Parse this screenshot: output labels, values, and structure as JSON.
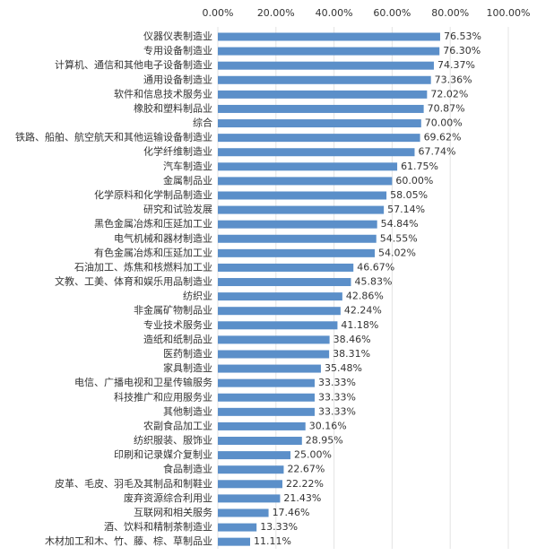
{
  "chart_data": {
    "type": "hbar",
    "color": "#5b8fc9",
    "grid": true,
    "xlim": [
      0,
      100
    ],
    "xticks": [
      {
        "value": 0,
        "label": "0.00%"
      },
      {
        "value": 20,
        "label": "20.00%"
      },
      {
        "value": 40,
        "label": "40.00%"
      },
      {
        "value": 60,
        "label": "60.00%"
      },
      {
        "value": 80,
        "label": "80.00%"
      },
      {
        "value": 100,
        "label": "100.00%"
      }
    ],
    "categories": [
      "仪器仪表制造业",
      "专用设备制造业",
      "计算机、通信和其他电子设备制造业",
      "通用设备制造业",
      "软件和信息技术服务业",
      "橡胶和塑料制品业",
      "综合",
      "铁路、船舶、航空航天和其他运输设备制造业",
      "化学纤维制造业",
      "汽车制造业",
      "金属制品业",
      "化学原料和化学制品制造业",
      "研究和试验发展",
      "黑色金属冶炼和压延加工业",
      "电气机械和器材制造业",
      "有色金属冶炼和压延加工业",
      "石油加工、炼焦和核燃料加工业",
      "文教、工美、体育和娱乐用品制造业",
      "纺织业",
      "非金属矿物制品业",
      "专业技术服务业",
      "造纸和纸制品业",
      "医药制造业",
      "家具制造业",
      "电信、广播电视和卫星传输服务",
      "科技推广和应用服务业",
      "其他制造业",
      "农副食品加工业",
      "纺织服装、服饰业",
      "印刷和记录媒介复制业",
      "食品制造业",
      "皮革、毛皮、羽毛及其制品和制鞋业",
      "废弃资源综合利用业",
      "互联网和相关服务",
      "酒、饮料和精制茶制造业",
      "木材加工和木、竹、藤、棕、草制品业"
    ],
    "values": [
      76.53,
      76.3,
      74.37,
      73.36,
      72.02,
      70.87,
      70.0,
      69.62,
      67.74,
      61.75,
      60.0,
      58.05,
      57.14,
      54.84,
      54.55,
      54.02,
      46.67,
      45.83,
      42.86,
      42.24,
      41.18,
      38.46,
      38.31,
      35.48,
      33.33,
      33.33,
      33.33,
      30.16,
      28.95,
      25.0,
      22.67,
      22.22,
      21.43,
      17.46,
      13.33,
      11.11
    ],
    "value_labels": [
      "76.53%",
      "76.30%",
      "74.37%",
      "73.36%",
      "72.02%",
      "70.87%",
      "70.00%",
      "69.62%",
      "67.74%",
      "61.75%",
      "60.00%",
      "58.05%",
      "57.14%",
      "54.84%",
      "54.55%",
      "54.02%",
      "46.67%",
      "45.83%",
      "42.86%",
      "42.24%",
      "41.18%",
      "38.46%",
      "38.31%",
      "35.48%",
      "33.33%",
      "33.33%",
      "33.33%",
      "30.16%",
      "28.95%",
      "25.00%",
      "22.67%",
      "22.22%",
      "21.43%",
      "17.46%",
      "13.33%",
      "11.11%"
    ]
  }
}
